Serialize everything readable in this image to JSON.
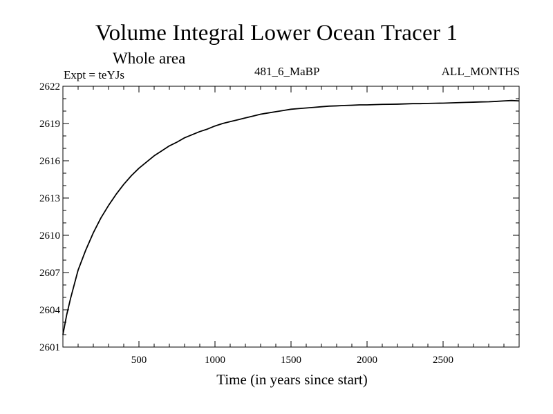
{
  "chart_data": {
    "type": "line",
    "title": "Volume Integral Lower Ocean Tracer 1",
    "subtitle": "Whole area",
    "expt_label": "Expt = teYJs",
    "run_label": "481_6_MaBP",
    "period_label": "ALL_MONTHS",
    "xlabel": "Time (in years since start)",
    "ylabel": "",
    "xlim": [
      0,
      3000
    ],
    "ylim": [
      2601,
      2622
    ],
    "x_ticks": [
      500,
      1000,
      1500,
      2000,
      2500
    ],
    "y_ticks": [
      2601,
      2604,
      2607,
      2610,
      2613,
      2616,
      2619,
      2622
    ],
    "series": [
      {
        "name": "Tracer 1",
        "color": "#000000",
        "x": [
          0,
          25,
          50,
          100,
          150,
          200,
          250,
          300,
          350,
          400,
          450,
          500,
          550,
          600,
          650,
          700,
          750,
          800,
          850,
          900,
          950,
          1000,
          1050,
          1100,
          1150,
          1200,
          1250,
          1300,
          1350,
          1400,
          1450,
          1500,
          1550,
          1600,
          1650,
          1700,
          1750,
          1800,
          1850,
          1900,
          1950,
          2000,
          2050,
          2100,
          2150,
          2200,
          2250,
          2300,
          2350,
          2400,
          2450,
          2500,
          2550,
          2600,
          2650,
          2700,
          2750,
          2800,
          2850,
          2900,
          2950,
          3000
        ],
        "values": [
          2602.0,
          2603.6,
          2604.9,
          2607.2,
          2608.8,
          2610.2,
          2611.4,
          2612.4,
          2613.3,
          2614.1,
          2614.8,
          2615.4,
          2615.9,
          2616.4,
          2616.8,
          2617.2,
          2617.5,
          2617.85,
          2618.1,
          2618.35,
          2618.55,
          2618.8,
          2619.0,
          2619.15,
          2619.3,
          2619.45,
          2619.6,
          2619.75,
          2619.85,
          2619.95,
          2620.05,
          2620.15,
          2620.2,
          2620.25,
          2620.3,
          2620.35,
          2620.4,
          2620.42,
          2620.45,
          2620.47,
          2620.5,
          2620.5,
          2620.52,
          2620.54,
          2620.55,
          2620.56,
          2620.58,
          2620.6,
          2620.6,
          2620.62,
          2620.63,
          2620.64,
          2620.66,
          2620.68,
          2620.7,
          2620.72,
          2620.74,
          2620.75,
          2620.78,
          2620.82,
          2620.85,
          2620.82
        ]
      }
    ]
  }
}
